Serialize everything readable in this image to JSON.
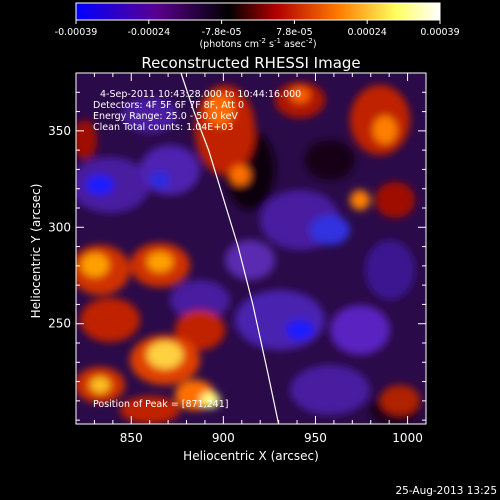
{
  "colorbar": {
    "tick_labels": [
      "-0.00039",
      "-0.00024",
      "-7.8e-05",
      "7.8e-05",
      "0.00024",
      "0.00039"
    ],
    "units_line1": "(photons cm",
    "units_sup1": "-2",
    "units_mid": " s",
    "units_sup2": "-1",
    "units_mid2": " asec",
    "units_sup3": "-2",
    "units_end": ")",
    "colors": [
      "#0000ff",
      "#5a0090",
      "#000000",
      "#b00000",
      "#ff7a00",
      "#ffff60",
      "#ffffff"
    ]
  },
  "chart_data": {
    "type": "heatmap",
    "title": "Reconstructed RHESSI Image",
    "xlabel": "Heliocentric X (arcsec)",
    "ylabel": "Heliocentric Y (arcsec)",
    "xlim": [
      820,
      1010
    ],
    "ylim": [
      198,
      380
    ],
    "x_ticks": [
      850,
      900,
      950,
      1000
    ],
    "y_ticks": [
      250,
      300,
      350
    ],
    "annotations": [
      "4-Sep-2011 10:43:28.000 to 10:44:16.000",
      "Detectors: 4F 5F 6F 7F 8F, Att 0",
      "Energy Range: 25.0 - 50.0 keV",
      "Clean     Total counts: 1.04E+03"
    ],
    "peak_label": "Position of Peak = [871,241]",
    "limb_curve_x": [
      877,
      884,
      892,
      900,
      908,
      916,
      924,
      930
    ],
    "limb_curve_y": [
      380,
      360,
      340,
      315,
      290,
      260,
      225,
      198
    ]
  },
  "footer": {
    "timestamp": "25-Aug-2013 13:25"
  }
}
